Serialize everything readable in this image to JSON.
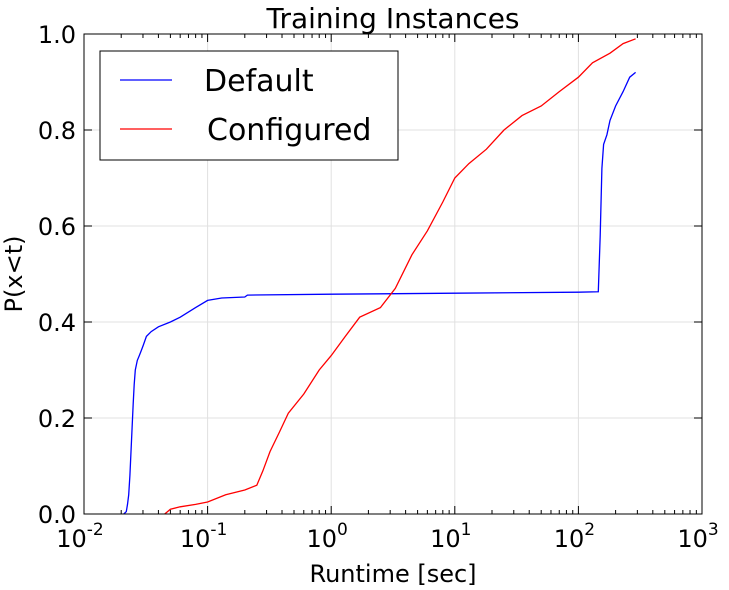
{
  "chart_data": {
    "type": "line",
    "title": "Training Instances",
    "xlabel": "Runtime [sec]",
    "ylabel": "P(x<t)",
    "x_scale": "log",
    "xlim": [
      0.01,
      1000
    ],
    "ylim": [
      0.0,
      1.0
    ],
    "x_tick_labels": [
      {
        "base": "10",
        "exp": "-2",
        "value": 0.01
      },
      {
        "base": "10",
        "exp": "-1",
        "value": 0.1
      },
      {
        "base": "10",
        "exp": "0",
        "value": 1
      },
      {
        "base": "10",
        "exp": "1",
        "value": 10
      },
      {
        "base": "10",
        "exp": "2",
        "value": 100
      },
      {
        "base": "10",
        "exp": "3",
        "value": 1000
      }
    ],
    "y_tick_labels": [
      "0.0",
      "0.2",
      "0.4",
      "0.6",
      "0.8",
      "1.0"
    ],
    "y_tick_values": [
      0.0,
      0.2,
      0.4,
      0.6,
      0.8,
      1.0
    ],
    "grid": true,
    "legend_position": "top-left",
    "series": [
      {
        "name": "Default",
        "color": "#0000ff",
        "x": [
          0.021,
          0.022,
          0.0225,
          0.023,
          0.0235,
          0.024,
          0.0245,
          0.025,
          0.0255,
          0.026,
          0.027,
          0.028,
          0.029,
          0.03,
          0.032,
          0.035,
          0.04,
          0.05,
          0.06,
          0.08,
          0.1,
          0.13,
          0.2,
          0.21,
          1.0,
          10.0,
          100.0,
          145.0,
          150.0,
          155.0,
          160.0,
          170.0,
          180.0,
          200.0,
          230.0,
          260.0,
          290.0
        ],
        "y": [
          0.0,
          0.005,
          0.02,
          0.04,
          0.08,
          0.13,
          0.18,
          0.23,
          0.27,
          0.3,
          0.32,
          0.33,
          0.34,
          0.35,
          0.37,
          0.38,
          0.39,
          0.4,
          0.41,
          0.43,
          0.445,
          0.45,
          0.452,
          0.456,
          0.458,
          0.46,
          0.462,
          0.463,
          0.58,
          0.72,
          0.77,
          0.79,
          0.82,
          0.85,
          0.88,
          0.91,
          0.92
        ]
      },
      {
        "name": "Configured",
        "color": "#ff0000",
        "x": [
          0.045,
          0.05,
          0.06,
          0.08,
          0.1,
          0.14,
          0.2,
          0.25,
          0.28,
          0.32,
          0.38,
          0.45,
          0.6,
          0.8,
          1.0,
          1.3,
          1.7,
          2.5,
          3.3,
          4.5,
          6.0,
          8.0,
          10.0,
          13.0,
          18.0,
          25.0,
          35.0,
          50.0,
          70.0,
          100.0,
          130.0,
          180.0,
          230.0,
          290.0
        ],
        "y": [
          0.0,
          0.01,
          0.015,
          0.02,
          0.025,
          0.04,
          0.05,
          0.06,
          0.09,
          0.13,
          0.17,
          0.21,
          0.25,
          0.3,
          0.33,
          0.37,
          0.41,
          0.43,
          0.47,
          0.54,
          0.59,
          0.65,
          0.7,
          0.73,
          0.76,
          0.8,
          0.83,
          0.85,
          0.88,
          0.91,
          0.94,
          0.96,
          0.98,
          0.99
        ]
      }
    ]
  }
}
